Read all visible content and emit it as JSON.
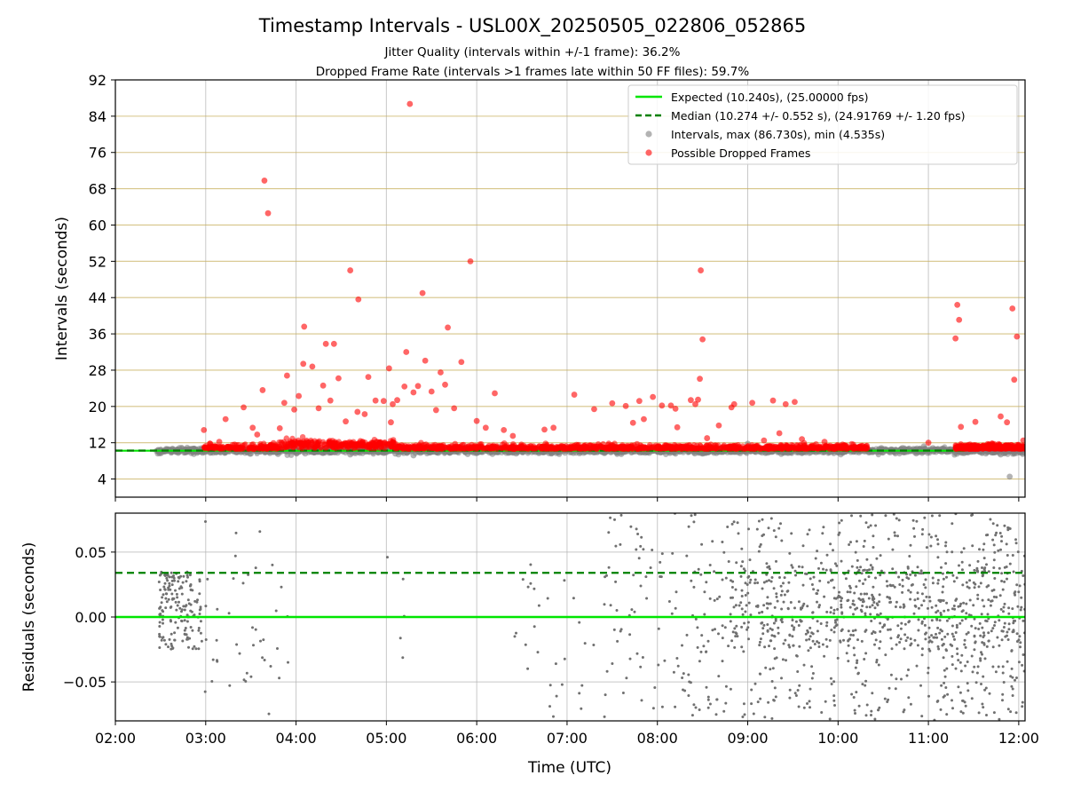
{
  "figure": {
    "title": "Timestamp Intervals - USL00X_20250505_022806_052865",
    "subtitle_1": "Jitter Quality (intervals within +/-1 frame): 36.2%",
    "subtitle_2": "Dropped Frame Rate (intervals >1 frames late within 50 FF files): 59.7%"
  },
  "colors": {
    "expected": "#00e600",
    "median": "#008000",
    "intervals": "#808080",
    "dropped": "#ff0000",
    "hgrid": "#c8b060",
    "vgrid": "#b0b0b0"
  },
  "chart_data": [
    {
      "type": "scatter",
      "ylabel": "Intervals (seconds)",
      "ylim": [
        0,
        92
      ],
      "xlim": [
        0,
        10.07
      ],
      "x_units": "hours after 02:00 UTC",
      "yticks": [
        4,
        12,
        20,
        28,
        36,
        44,
        52,
        60,
        68,
        76,
        84,
        92
      ],
      "ytick_labels": [
        "4",
        "12",
        "20",
        "28",
        "36",
        "44",
        "52",
        "60",
        "68",
        "76",
        "84",
        "92"
      ],
      "grid": true,
      "legend_position": "top-right",
      "legend": {
        "expected": "Expected (10.240s), (25.00000 fps)",
        "median": "Median (10.274 +/- 0.552 s), (24.91769 +/- 1.20 fps)",
        "intervals": "Intervals, max (86.730s), min (4.535s)",
        "dropped": "Possible Dropped Frames"
      },
      "expected_line": {
        "y": 10.24,
        "x": [
          0,
          9.4
        ]
      },
      "median_line": {
        "y": 10.274,
        "x": [
          0,
          9.4
        ]
      },
      "series": [
        {
          "name": "Intervals, max (86.730s), min (4.535s)",
          "points": [
            [
              0.48,
              10.1
            ],
            [
              0.55,
              10.3
            ],
            [
              0.62,
              10.0
            ],
            [
              0.7,
              10.2
            ],
            [
              0.78,
              9.9
            ],
            [
              0.85,
              10.4
            ],
            [
              0.92,
              10.1
            ],
            [
              1.05,
              9.8
            ],
            [
              1.2,
              10.3
            ],
            [
              1.35,
              10.0
            ],
            [
              1.5,
              9.6
            ],
            [
              1.65,
              10.1
            ],
            [
              1.8,
              9.5
            ],
            [
              2.0,
              10.2
            ],
            [
              2.2,
              9.9
            ],
            [
              2.4,
              10.5
            ],
            [
              2.6,
              9.4
            ],
            [
              2.8,
              10.1
            ],
            [
              3.1,
              9.6
            ],
            [
              3.3,
              9.2
            ],
            [
              3.5,
              10.2
            ],
            [
              3.7,
              9.8
            ],
            [
              3.9,
              9.5
            ],
            [
              4.2,
              9.9
            ],
            [
              4.5,
              10.1
            ],
            [
              4.8,
              9.7
            ],
            [
              5.1,
              9.8
            ],
            [
              5.3,
              9.9
            ],
            [
              5.6,
              9.5
            ],
            [
              5.9,
              10.0
            ],
            [
              6.2,
              9.6
            ],
            [
              6.45,
              9.8
            ],
            [
              6.6,
              10.8
            ],
            [
              6.8,
              10.3
            ],
            [
              7.0,
              11.8
            ],
            [
              7.1,
              10.6
            ],
            [
              7.2,
              9.9
            ],
            [
              7.4,
              10.4
            ],
            [
              7.6,
              9.7
            ],
            [
              7.85,
              10.3
            ],
            [
              8.1,
              10.2
            ],
            [
              8.3,
              10.5
            ],
            [
              8.5,
              9.9
            ],
            [
              8.7,
              10.4
            ],
            [
              8.95,
              11.2
            ],
            [
              9.05,
              10.8
            ],
            [
              9.15,
              10.0
            ],
            [
              9.35,
              10.3
            ],
            [
              9.8,
              9.4
            ],
            [
              9.9,
              4.53
            ],
            [
              9.95,
              9.6
            ],
            [
              10.02,
              9.9
            ]
          ]
        },
        {
          "name": "Possible Dropped Frames",
          "points": [
            [
              0.98,
              14.8
            ],
            [
              1.05,
              11.8
            ],
            [
              1.15,
              12.2
            ],
            [
              1.22,
              17.2
            ],
            [
              1.32,
              11.6
            ],
            [
              1.42,
              19.8
            ],
            [
              1.52,
              15.3
            ],
            [
              1.57,
              13.8
            ],
            [
              1.63,
              23.6
            ],
            [
              1.65,
              69.8
            ],
            [
              1.69,
              62.6
            ],
            [
              1.75,
              11.9
            ],
            [
              1.82,
              15.2
            ],
            [
              1.87,
              20.8
            ],
            [
              1.9,
              26.8
            ],
            [
              1.98,
              19.3
            ],
            [
              2.03,
              22.3
            ],
            [
              2.08,
              29.4
            ],
            [
              2.09,
              37.6
            ],
            [
              2.18,
              28.8
            ],
            [
              2.25,
              19.6
            ],
            [
              2.3,
              24.6
            ],
            [
              2.33,
              33.8
            ],
            [
              2.38,
              21.3
            ],
            [
              2.42,
              33.8
            ],
            [
              2.47,
              26.2
            ],
            [
              2.55,
              16.7
            ],
            [
              2.6,
              50.0
            ],
            [
              2.68,
              18.8
            ],
            [
              2.69,
              43.6
            ],
            [
              2.76,
              18.3
            ],
            [
              2.8,
              26.5
            ],
            [
              2.88,
              21.3
            ],
            [
              2.97,
              21.2
            ],
            [
              3.03,
              28.4
            ],
            [
              3.05,
              16.5
            ],
            [
              3.07,
              20.5
            ],
            [
              3.12,
              21.4
            ],
            [
              3.2,
              24.4
            ],
            [
              3.22,
              32.0
            ],
            [
              3.26,
              86.7
            ],
            [
              3.3,
              23.1
            ],
            [
              3.35,
              24.5
            ],
            [
              3.4,
              45.0
            ],
            [
              3.43,
              30.1
            ],
            [
              3.5,
              23.3
            ],
            [
              3.55,
              19.2
            ],
            [
              3.6,
              27.5
            ],
            [
              3.65,
              24.8
            ],
            [
              3.68,
              37.4
            ],
            [
              3.75,
              19.6
            ],
            [
              3.83,
              29.8
            ],
            [
              3.93,
              52.0
            ],
            [
              4.0,
              16.8
            ],
            [
              4.1,
              15.3
            ],
            [
              4.2,
              22.9
            ],
            [
              4.3,
              14.8
            ],
            [
              4.4,
              13.5
            ],
            [
              4.75,
              14.9
            ],
            [
              4.85,
              15.3
            ],
            [
              5.08,
              22.6
            ],
            [
              5.3,
              19.4
            ],
            [
              5.5,
              20.7
            ],
            [
              5.65,
              20.1
            ],
            [
              5.73,
              16.4
            ],
            [
              5.8,
              21.2
            ],
            [
              5.85,
              17.2
            ],
            [
              5.95,
              22.1
            ],
            [
              6.05,
              20.2
            ],
            [
              6.15,
              20.2
            ],
            [
              6.2,
              19.5
            ],
            [
              6.22,
              15.4
            ],
            [
              6.37,
              21.4
            ],
            [
              6.42,
              20.5
            ],
            [
              6.45,
              21.5
            ],
            [
              6.47,
              26.1
            ],
            [
              6.48,
              50.0
            ],
            [
              6.5,
              34.8
            ],
            [
              6.55,
              13.0
            ],
            [
              6.68,
              15.8
            ],
            [
              6.82,
              19.8
            ],
            [
              6.85,
              20.5
            ],
            [
              7.05,
              20.8
            ],
            [
              7.18,
              12.5
            ],
            [
              7.28,
              21.3
            ],
            [
              7.35,
              14.1
            ],
            [
              7.42,
              20.5
            ],
            [
              7.52,
              21.0
            ],
            [
              7.6,
              12.8
            ],
            [
              7.85,
              12.2
            ],
            [
              8.05,
              11.6
            ],
            [
              9.0,
              12.0
            ],
            [
              9.3,
              35.0
            ],
            [
              9.32,
              42.4
            ],
            [
              9.34,
              39.1
            ],
            [
              9.36,
              15.5
            ],
            [
              9.52,
              16.6
            ],
            [
              9.8,
              17.8
            ],
            [
              9.87,
              16.5
            ],
            [
              9.93,
              41.6
            ],
            [
              9.95,
              25.9
            ],
            [
              9.98,
              35.4
            ],
            [
              10.05,
              12.5
            ]
          ]
        }
      ]
    },
    {
      "type": "scatter",
      "ylabel": "Residuals (seconds)",
      "xlabel": "Time (UTC)",
      "ylim": [
        -0.08,
        0.08
      ],
      "xlim": [
        0,
        10.07
      ],
      "x_units": "hours after 02:00 UTC",
      "yticks": [
        0.05,
        0.0,
        -0.05
      ],
      "ytick_labels": [
        "0.05",
        "0.00",
        "−0.05"
      ],
      "xticks": [
        0,
        1,
        2,
        3,
        4,
        5,
        6,
        7,
        8,
        9,
        10
      ],
      "xtick_labels": [
        "02:00",
        "03:00",
        "04:00",
        "05:00",
        "06:00",
        "07:00",
        "08:00",
        "09:00",
        "10:00",
        "11:00",
        "12:00"
      ],
      "grid": true,
      "expected_line": {
        "y": 0.0
      },
      "median_line": {
        "y": 0.034
      },
      "series": [
        {
          "name": "Residuals",
          "density_bands": [
            {
              "x": [
                0.48,
                0.95
              ],
              "count": 170,
              "y": [
                -0.025,
                0.035
              ]
            },
            {
              "x": [
                0.95,
                1.15
              ],
              "count": 12,
              "y": [
                -0.07,
                0.075
              ]
            },
            {
              "x": [
                1.25,
                1.75
              ],
              "count": 25,
              "y": [
                -0.075,
                0.075
              ]
            },
            {
              "x": [
                1.75,
                1.95
              ],
              "count": 6,
              "y": [
                -0.07,
                0.07
              ]
            },
            {
              "x": [
                3.0,
                3.3
              ],
              "count": 5,
              "y": [
                -0.05,
                0.07
              ]
            },
            {
              "x": [
                4.4,
                4.7
              ],
              "count": 12,
              "y": [
                -0.06,
                0.075
              ]
            },
            {
              "x": [
                4.75,
                5.3
              ],
              "count": 16,
              "y": [
                -0.08,
                0.08
              ]
            },
            {
              "x": [
                5.4,
                6.3
              ],
              "count": 70,
              "y": [
                -0.08,
                0.08
              ]
            },
            {
              "x": [
                6.3,
                7.95
              ],
              "count": 240,
              "y": [
                -0.08,
                0.08
              ]
            },
            {
              "x": [
                6.8,
                10.07
              ],
              "count": 420,
              "y": [
                -0.025,
                0.04
              ]
            },
            {
              "x": [
                7.95,
                10.07
              ],
              "count": 430,
              "y": [
                -0.08,
                0.08
              ]
            }
          ]
        }
      ]
    }
  ]
}
